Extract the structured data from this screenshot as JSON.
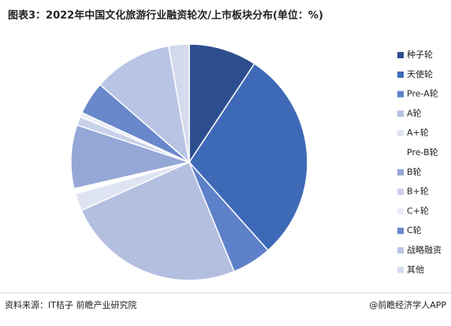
{
  "chart_data": {
    "type": "pie",
    "title": "图表3：2022年中国文化旅游行业融资轮次/上市板块分布(单位：%)",
    "categories": [
      "种子轮",
      "天使轮",
      "Pre-A轮",
      "A轮",
      "A+轮",
      "Pre-B轮",
      "B轮",
      "B+轮",
      "C+轮",
      "C轮",
      "战略融资",
      "其他"
    ],
    "values": [
      9.3,
      29.1,
      5.4,
      24.5,
      2.4,
      0.7,
      8.7,
      1.2,
      0.6,
      4.5,
      10.8,
      2.8
    ],
    "colors": [
      "#2d4e8e",
      "#3e69b7",
      "#5e80c8",
      "#b4bfe0",
      "#dfe4f2",
      "#ffffff",
      "#95a7d6",
      "#c9d1ea",
      "#e9ecf6",
      "#6987cb",
      "#b9c4e4",
      "#d3daed"
    ],
    "source": "资料来源：IT桔子 前瞻产业研究院",
    "brand": "@前瞻经济学人APP"
  }
}
